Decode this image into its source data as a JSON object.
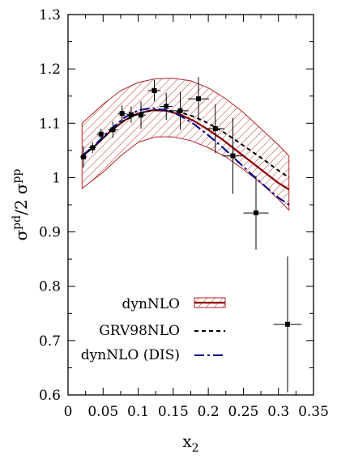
{
  "chart_data": {
    "type": "line",
    "title": "",
    "xlabel": "x",
    "xlabel_sub": "2",
    "ylabel_parts": {
      "a": "σ",
      "a_sup": "pd",
      "b": "/2 σ",
      "b_sup": "pp"
    },
    "xlim": [
      0,
      0.35
    ],
    "ylim": [
      0.6,
      1.3
    ],
    "x_ticks": [
      0,
      0.05,
      0.1,
      0.15,
      0.2,
      0.25,
      0.3,
      0.35
    ],
    "x_tick_labels": [
      "0",
      "0.05",
      "0.1",
      "0.15",
      "0.2",
      "0.25",
      "0.3",
      "0.35"
    ],
    "y_ticks": [
      0.6,
      0.7,
      0.8,
      0.9,
      1.0,
      1.1,
      1.2,
      1.3
    ],
    "y_tick_labels": [
      "0.6",
      "0.7",
      "0.8",
      "0.9",
      "1",
      "1.1",
      "1.2",
      "1.3"
    ],
    "grid": false,
    "legend_position": "bottom-center",
    "band": {
      "name": "dynNLO",
      "color": "#b22222",
      "x": [
        0.02,
        0.05,
        0.075,
        0.1,
        0.125,
        0.15,
        0.175,
        0.2,
        0.225,
        0.25,
        0.275,
        0.3,
        0.315
      ],
      "upper": [
        1.1,
        1.135,
        1.16,
        1.175,
        1.182,
        1.183,
        1.178,
        1.165,
        1.145,
        1.12,
        1.09,
        1.06,
        1.04
      ],
      "lower": [
        0.98,
        1.01,
        1.04,
        1.065,
        1.075,
        1.075,
        1.068,
        1.055,
        1.038,
        1.015,
        0.99,
        0.96,
        0.94
      ]
    },
    "series": [
      {
        "name": "dynNLO",
        "style": "solid",
        "color": "#8b0000",
        "x": [
          0.02,
          0.04,
          0.06,
          0.08,
          0.1,
          0.12,
          0.14,
          0.16,
          0.18,
          0.2,
          0.22,
          0.24,
          0.26,
          0.28,
          0.3,
          0.315
        ],
        "y": [
          1.04,
          1.06,
          1.085,
          1.105,
          1.118,
          1.124,
          1.123,
          1.116,
          1.104,
          1.088,
          1.07,
          1.05,
          1.03,
          1.01,
          0.99,
          0.978
        ]
      },
      {
        "name": "GRV98NLO",
        "style": "dashed",
        "color": "#000000",
        "x": [
          0.02,
          0.04,
          0.06,
          0.08,
          0.1,
          0.12,
          0.14,
          0.16,
          0.18,
          0.2,
          0.22,
          0.24,
          0.26,
          0.28,
          0.3,
          0.315
        ],
        "y": [
          1.04,
          1.06,
          1.085,
          1.105,
          1.118,
          1.124,
          1.124,
          1.12,
          1.112,
          1.1,
          1.085,
          1.068,
          1.05,
          1.032,
          1.013,
          1.0
        ]
      },
      {
        "name": "dynNLO (DIS)",
        "style": "dashdot",
        "color": "#00008b",
        "x": [
          0.02,
          0.04,
          0.06,
          0.08,
          0.1,
          0.12,
          0.14,
          0.16,
          0.18,
          0.2,
          0.22,
          0.24,
          0.26,
          0.28,
          0.3,
          0.315
        ],
        "y": [
          1.04,
          1.062,
          1.088,
          1.11,
          1.124,
          1.128,
          1.124,
          1.114,
          1.098,
          1.078,
          1.056,
          1.032,
          1.008,
          0.985,
          0.963,
          0.95
        ]
      }
    ],
    "data_points": [
      {
        "x": 0.022,
        "y": 1.038,
        "xerr": 0.005,
        "yerr": 0.02
      },
      {
        "x": 0.035,
        "y": 1.055,
        "xerr": 0.005,
        "yerr": 0.01
      },
      {
        "x": 0.047,
        "y": 1.08,
        "xerr": 0.006,
        "yerr": 0.01
      },
      {
        "x": 0.064,
        "y": 1.088,
        "xerr": 0.007,
        "yerr": 0.015
      },
      {
        "x": 0.077,
        "y": 1.118,
        "xerr": 0.006,
        "yerr": 0.015
      },
      {
        "x": 0.09,
        "y": 1.116,
        "xerr": 0.006,
        "yerr": 0.015
      },
      {
        "x": 0.104,
        "y": 1.115,
        "xerr": 0.007,
        "yerr": 0.025
      },
      {
        "x": 0.123,
        "y": 1.16,
        "xerr": 0.009,
        "yerr": 0.02
      },
      {
        "x": 0.14,
        "y": 1.131,
        "xerr": 0.009,
        "yerr": 0.025
      },
      {
        "x": 0.16,
        "y": 1.123,
        "xerr": 0.012,
        "yerr": 0.035
      },
      {
        "x": 0.186,
        "y": 1.145,
        "xerr": 0.015,
        "yerr": 0.04
      },
      {
        "x": 0.21,
        "y": 1.09,
        "xerr": 0.013,
        "yerr": 0.045
      },
      {
        "x": 0.235,
        "y": 1.04,
        "xerr": 0.015,
        "yerr": 0.07
      },
      {
        "x": 0.268,
        "y": 0.935,
        "xerr": 0.018,
        "yerr": 0.068
      },
      {
        "x": 0.313,
        "y": 0.73,
        "xerr": 0.02,
        "yerr": 0.125
      }
    ],
    "legend": [
      {
        "label": "dynNLO",
        "key": "band-solid"
      },
      {
        "label": "GRV98NLO",
        "key": "dashed"
      },
      {
        "label": "dynNLO (DIS)",
        "key": "dashdot"
      }
    ]
  }
}
